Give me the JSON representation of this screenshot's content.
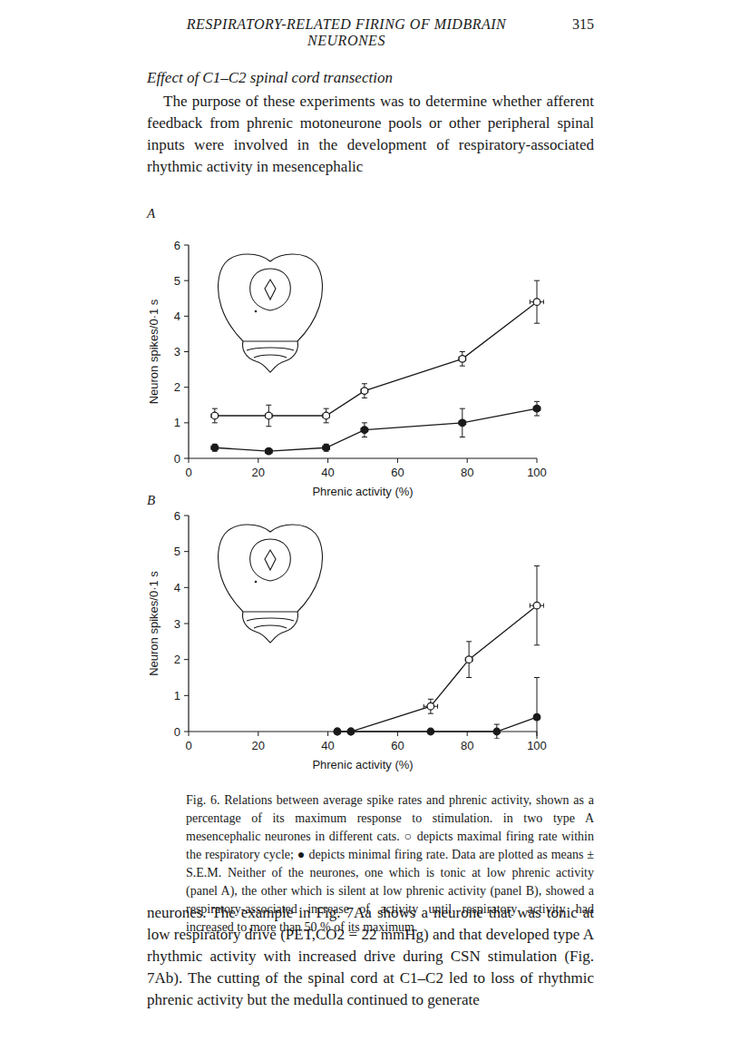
{
  "header": {
    "title": "RESPIRATORY-RELATED FIRING OF MIDBRAIN NEURONES",
    "page": "315"
  },
  "section": "Effect of C1–C2 spinal cord transection",
  "paragraphs": [
    "The purpose of these experiments was to determine whether afferent feedback from phrenic motoneurone pools or other peripheral spinal inputs were involved in the development of respiratory-associated rhythmic activity in mesencephalic",
    "neurones. The example in Fig. 7Aa shows a neurone that was tonic at low respiratory drive (PET,CO2 = 22 mmHg) and that developed type A rhythmic activity with increased drive during CSN stimulation (Fig. 7Ab). The cutting of the spinal cord at C1–C2 led to loss of rhythmic phrenic activity but the medulla continued to generate"
  ],
  "caption": "Fig. 6. Relations between average spike rates and phrenic activity, shown as a percentage of its maximum response to stimulation. in two type A mesencephalic neurones in different cats. ○ depicts maximal firing rate within the respiratory cycle; ● depicts minimal firing rate. Data are plotted as means ± S.E.M. Neither of the neurones, one which is tonic at low phrenic activity (panel A), the other which is silent at low phrenic activity (panel B), showed a respiratory-associated increase of activity until respiratory activity had increased to more than 50 % of its maximum.",
  "chart_data": [
    {
      "type": "line",
      "label": "A",
      "xlabel": "Phrenic activity (%)",
      "ylabel": "Neuron spikes/0·1 s",
      "xlim": [
        0,
        100
      ],
      "ylim": [
        0,
        6
      ],
      "xticks": [
        0,
        20,
        40,
        60,
        80,
        100
      ],
      "yticks": [
        0,
        1,
        2,
        3,
        4,
        5,
        6
      ],
      "series": [
        {
          "marker": "open-circle",
          "color": "#1a1a1a",
          "x": [
            7.5,
            23,
            39.5,
            50.5,
            78.6,
            100
          ],
          "values": [
            1.2,
            1.2,
            1.2,
            1.9,
            2.8,
            4.4
          ],
          "errors": [
            0.2,
            0.3,
            0.2,
            0.2,
            0.2,
            0.6
          ],
          "x_errors": [
            1,
            1,
            1,
            1,
            1,
            2
          ]
        },
        {
          "marker": "filled-circle",
          "color": "#1a1a1a",
          "x": [
            7.5,
            23,
            39.5,
            50.5,
            78.6,
            100
          ],
          "values": [
            0.3,
            0.2,
            0.3,
            0.8,
            1.0,
            1.4
          ],
          "errors": [
            0.1,
            0.05,
            0.1,
            0.2,
            0.4,
            0.2
          ],
          "x_errors": [
            1,
            1,
            1,
            1,
            1,
            1
          ]
        }
      ]
    },
    {
      "type": "line",
      "label": "B",
      "xlabel": "Phrenic activity (%)",
      "ylabel": "Neuron spikes/0·1 s",
      "xlim": [
        0,
        100
      ],
      "ylim": [
        0,
        6
      ],
      "xticks": [
        0,
        20,
        40,
        60,
        80,
        100
      ],
      "yticks": [
        0,
        1,
        2,
        3,
        4,
        5,
        6
      ],
      "series": [
        {
          "marker": "open-circle",
          "color": "#1a1a1a",
          "x": [
            42.7,
            46.6,
            69.5,
            80.5,
            100
          ],
          "values": [
            0,
            0,
            0.7,
            2.0,
            3.5
          ],
          "errors": [
            0,
            0,
            0.2,
            0.5,
            1.1
          ],
          "x_errors": [
            0,
            0,
            2,
            1,
            2
          ]
        },
        {
          "marker": "filled-circle",
          "color": "#1a1a1a",
          "x": [
            42.7,
            46.6,
            69.5,
            88.5,
            100
          ],
          "values": [
            0,
            0,
            0,
            0,
            0.4
          ],
          "errors": [
            0,
            0,
            0,
            0.2,
            1.1
          ],
          "x_errors": [
            0,
            0,
            0,
            0,
            0
          ]
        }
      ]
    }
  ]
}
